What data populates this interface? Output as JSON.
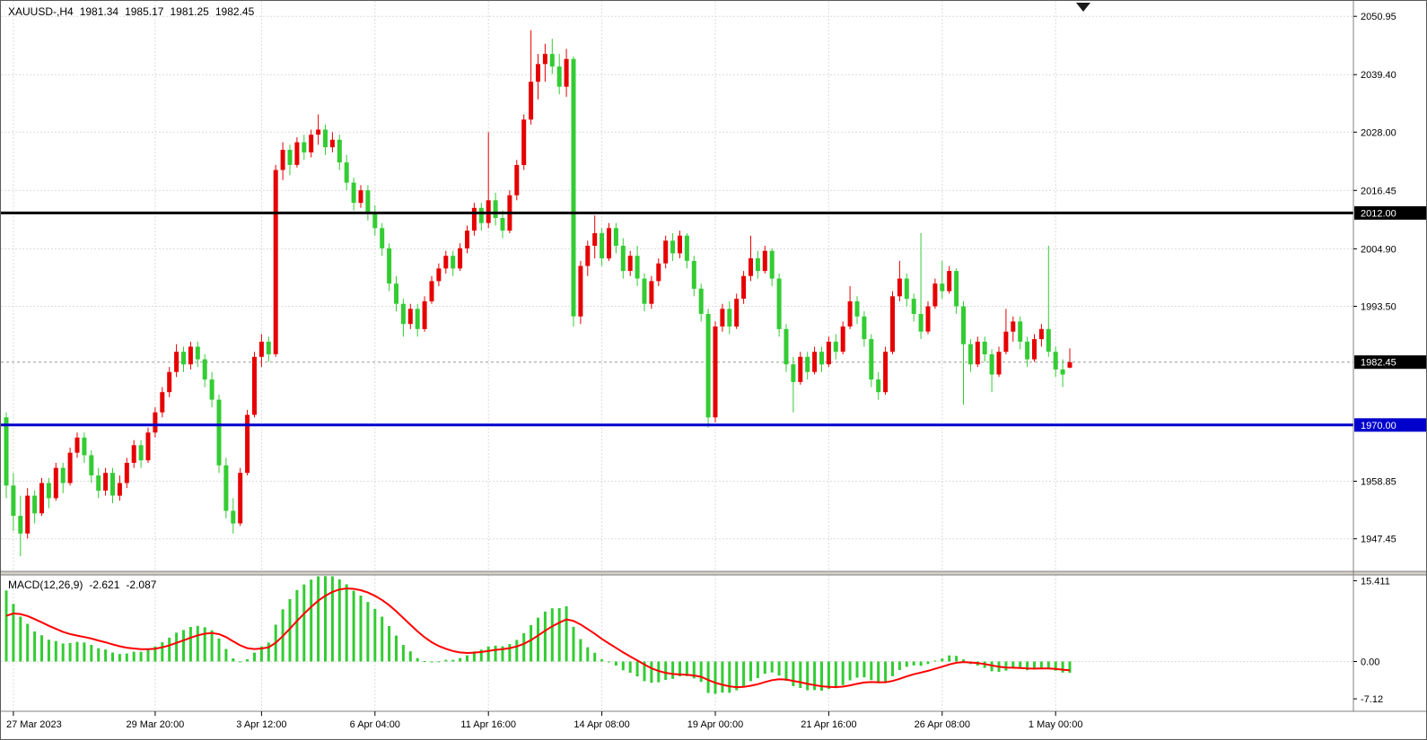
{
  "header": {
    "symbol_timeframe": "XAUUSD-,H4",
    "open": "1981.34",
    "high": "1985.17",
    "low": "1981.25",
    "close": "1982.45"
  },
  "indicator_header": {
    "label": "MACD(12,26,9)",
    "value": "-2.621",
    "signal": "-2.087"
  },
  "chart_data": {
    "type": "candlestick",
    "symbol": "XAUUSD-",
    "timeframe": "H4",
    "grid": true,
    "price_range": [
      1941,
      2054
    ],
    "current_price": 1982.45,
    "current_price_label": "1982.45",
    "colors": {
      "up": "#E60000",
      "down": "#33CC33",
      "background": "#FFFFFF",
      "text": "#000000",
      "bid_line": "#9a9a9a"
    },
    "price_ticks": [
      {
        "label": "2050.95",
        "value": 2050.95
      },
      {
        "label": "2039.40",
        "value": 2039.4
      },
      {
        "label": "2028.00",
        "value": 2028.0
      },
      {
        "label": "2016.45",
        "value": 2016.45
      },
      {
        "label": "2004.90",
        "value": 2004.9
      },
      {
        "label": "1993.50",
        "value": 1993.5
      },
      {
        "label": "1958.85",
        "value": 1958.85
      },
      {
        "label": "1947.45",
        "value": 1947.45
      }
    ],
    "levels": [
      {
        "label": "2012.00",
        "price": 2012.0,
        "color": "#000000"
      },
      {
        "label": "1970.00",
        "price": 1970.0,
        "color": "#0000CC"
      }
    ],
    "time_labels": [
      {
        "text": "27 Mar 2023",
        "index": 1
      },
      {
        "text": "29 Mar 20:00",
        "index": 21
      },
      {
        "text": "3 Apr 12:00",
        "index": 36
      },
      {
        "text": "6 Apr 04:00",
        "index": 52
      },
      {
        "text": "11 Apr 16:00",
        "index": 68
      },
      {
        "text": "14 Apr 08:00",
        "index": 84
      },
      {
        "text": "19 Apr 00:00",
        "index": 100
      },
      {
        "text": "21 Apr 16:00",
        "index": 116
      },
      {
        "text": "26 Apr 08:00",
        "index": 132
      },
      {
        "text": "1 May 00:00",
        "index": 148
      }
    ],
    "candles": [
      [
        1971.5,
        1972.5,
        1955.5,
        1958
      ],
      [
        1958,
        1960.5,
        1949,
        1952
      ],
      [
        1952,
        1956,
        1944,
        1948.5
      ],
      [
        1948.5,
        1957.5,
        1947.5,
        1956
      ],
      [
        1956,
        1957,
        1950.5,
        1952.5
      ],
      [
        1952.5,
        1959.5,
        1952,
        1958.5
      ],
      [
        1958.5,
        1959.5,
        1953.5,
        1955.5
      ],
      [
        1955.5,
        1962.5,
        1955,
        1961.5
      ],
      [
        1961.5,
        1962.5,
        1956.5,
        1958.5
      ],
      [
        1958.5,
        1965.5,
        1958,
        1964.5
      ],
      [
        1964.5,
        1968.5,
        1963.5,
        1967.5
      ],
      [
        1967.5,
        1968.5,
        1962.5,
        1964
      ],
      [
        1964,
        1965,
        1958.5,
        1960
      ],
      [
        1960,
        1961.5,
        1955.5,
        1957
      ],
      [
        1957,
        1961.5,
        1956,
        1960.5
      ],
      [
        1960.5,
        1961.5,
        1954.5,
        1956
      ],
      [
        1956,
        1960,
        1955,
        1958.5
      ],
      [
        1958.5,
        1963.5,
        1957.5,
        1962.5
      ],
      [
        1962.5,
        1967,
        1961.5,
        1966
      ],
      [
        1966,
        1967,
        1961.5,
        1963
      ],
      [
        1963,
        1969.5,
        1962.5,
        1968.5
      ],
      [
        1968.5,
        1973.5,
        1967.5,
        1972.5
      ],
      [
        1972.5,
        1977.5,
        1971.5,
        1976.5
      ],
      [
        1976.5,
        1981.5,
        1975.5,
        1980.5
      ],
      [
        1980.5,
        1986,
        1979.5,
        1984.5
      ],
      [
        1984.5,
        1985.5,
        1980.5,
        1982
      ],
      [
        1982,
        1986.5,
        1981,
        1985.5
      ],
      [
        1985.5,
        1986.5,
        1981.5,
        1983
      ],
      [
        1983,
        1984,
        1977.5,
        1979
      ],
      [
        1979,
        1980.5,
        1973.5,
        1975
      ],
      [
        1975,
        1976,
        1960.5,
        1962
      ],
      [
        1962,
        1963.5,
        1951.5,
        1953
      ],
      [
        1953,
        1955.5,
        1948.5,
        1950.5
      ],
      [
        1950.5,
        1961.5,
        1950,
        1960.5
      ],
      [
        1960.5,
        1973,
        1960,
        1972
      ],
      [
        1972,
        1984.5,
        1971.5,
        1983.5
      ],
      [
        1983.5,
        1988,
        1981.5,
        1986.5
      ],
      [
        1986.5,
        1987.5,
        1982.5,
        1984
      ],
      [
        1984,
        2021.5,
        1983.5,
        2020.5
      ],
      [
        2020.5,
        2026,
        2018.5,
        2024.5
      ],
      [
        2024.5,
        2025.5,
        2019.5,
        2021.5
      ],
      [
        2021.5,
        2027,
        2021,
        2026
      ],
      [
        2026,
        2027.5,
        2022.5,
        2024
      ],
      [
        2024,
        2028.5,
        2023,
        2027.5
      ],
      [
        2027.5,
        2031.5,
        2025.5,
        2028.5
      ],
      [
        2028.5,
        2029.5,
        2023.5,
        2025
      ],
      [
        2025,
        2028,
        2024,
        2026.5
      ],
      [
        2026.5,
        2027.5,
        2020.5,
        2022
      ],
      [
        2022,
        2023.5,
        2016.5,
        2018
      ],
      [
        2018,
        2019,
        2012.5,
        2014
      ],
      [
        2014,
        2017.5,
        2013,
        2016.5
      ],
      [
        2016.5,
        2017.5,
        2010.5,
        2012
      ],
      [
        2012,
        2013.5,
        2007.5,
        2009
      ],
      [
        2009,
        2010,
        2003.5,
        2005
      ],
      [
        2005,
        2006,
        1996.5,
        1998
      ],
      [
        1998,
        1999.5,
        1992.5,
        1994
      ],
      [
        1994,
        1995,
        1987.5,
        1990
      ],
      [
        1990,
        1994,
        1989,
        1993
      ],
      [
        1993,
        1994,
        1987.5,
        1989
      ],
      [
        1989,
        1995.5,
        1988.5,
        1994.5
      ],
      [
        1994.5,
        1999.5,
        1994,
        1998.5
      ],
      [
        1998.5,
        2002,
        1997.5,
        2001
      ],
      [
        2001,
        2004.5,
        2000,
        2003.5
      ],
      [
        2003.5,
        2004.5,
        1999.5,
        2001
      ],
      [
        2001,
        2006,
        2000.5,
        2005
      ],
      [
        2005,
        2009.5,
        2004,
        2008.5
      ],
      [
        2008.5,
        2014,
        2007.5,
        2013
      ],
      [
        2013,
        2014,
        2008.5,
        2010
      ],
      [
        2010,
        2028,
        2009,
        2014.5
      ],
      [
        2014.5,
        2016,
        2009.5,
        2011
      ],
      [
        2011,
        2012.5,
        2007,
        2008.5
      ],
      [
        2008.5,
        2016.5,
        2008,
        2015.5
      ],
      [
        2015.5,
        2022.5,
        2014.5,
        2021.5
      ],
      [
        2021.5,
        2031.5,
        2020.5,
        2030.5
      ],
      [
        2030.5,
        2048.2,
        2029.5,
        2038
      ],
      [
        2038,
        2043.5,
        2034.5,
        2041.5
      ],
      [
        2041.5,
        2045.5,
        2038,
        2043.5
      ],
      [
        2043.5,
        2046.5,
        2039.5,
        2041
      ],
      [
        2041,
        2043.5,
        2035.5,
        2037
      ],
      [
        2037,
        2044.5,
        2035,
        2042.5
      ],
      [
        2042.5,
        2043,
        1989.5,
        1991.5
      ],
      [
        1991.5,
        2002.5,
        1990,
        2001.5
      ],
      [
        2001.5,
        2006.5,
        1999.5,
        2005.5
      ],
      [
        2005.5,
        2011.5,
        2003,
        2008
      ],
      [
        2008,
        2009,
        2001.5,
        2003
      ],
      [
        2003,
        2010,
        2002.5,
        2009
      ],
      [
        2009,
        2010,
        2004,
        2005.5
      ],
      [
        2005.5,
        2007,
        1999,
        2000.5
      ],
      [
        2000.5,
        2004.5,
        1999.5,
        2003.5
      ],
      [
        2003.5,
        2005.5,
        1997.5,
        1999
      ],
      [
        1999,
        2000,
        1992.5,
        1994
      ],
      [
        1994,
        1999.5,
        1993,
        1998.5
      ],
      [
        1998.5,
        2003,
        1997.5,
        2002
      ],
      [
        2002,
        2007.5,
        2001,
        2006.5
      ],
      [
        2006.5,
        2008,
        2002.5,
        2004
      ],
      [
        2004,
        2008.5,
        2003,
        2007.5
      ],
      [
        2007.5,
        2008,
        2001,
        2002.5
      ],
      [
        2002.5,
        2003.5,
        1995.5,
        1997
      ],
      [
        1997,
        1998,
        1990.5,
        1992
      ],
      [
        1992,
        1993,
        1969.5,
        1971.5
      ],
      [
        1971.5,
        1990.5,
        1970.5,
        1989.5
      ],
      [
        1989.5,
        1994,
        1988.5,
        1993
      ],
      [
        1993,
        1994.5,
        1988,
        1989.5
      ],
      [
        1989.5,
        1996,
        1989,
        1995
      ],
      [
        1995,
        2000.5,
        1994,
        1999.5
      ],
      [
        1999.5,
        2007.5,
        1998.5,
        2003
      ],
      [
        2003,
        2004.5,
        1999,
        2000.5
      ],
      [
        2000.5,
        2005.5,
        2000,
        2004.5
      ],
      [
        2004.5,
        2005,
        1997.5,
        1999
      ],
      [
        1999,
        2000,
        1987.5,
        1989
      ],
      [
        1989,
        1990,
        1980.5,
        1982
      ],
      [
        1982,
        1983.5,
        1972.5,
        1978.5
      ],
      [
        1978.5,
        1984.5,
        1978,
        1983.5
      ],
      [
        1983.5,
        1984.5,
        1979,
        1980.5
      ],
      [
        1980.5,
        1985.5,
        1980,
        1984.5
      ],
      [
        1984.5,
        1985.5,
        1980.5,
        1982
      ],
      [
        1982,
        1987.5,
        1981.5,
        1986.5
      ],
      [
        1986.5,
        1988,
        1983,
        1984.5
      ],
      [
        1984.5,
        1990.5,
        1984,
        1989.5
      ],
      [
        1989.5,
        1997.5,
        1989,
        1994.5
      ],
      [
        1994.5,
        1995.5,
        1990,
        1991.5
      ],
      [
        1991.5,
        1992.5,
        1985.5,
        1987
      ],
      [
        1987,
        1988,
        1977.5,
        1979
      ],
      [
        1979,
        1980.5,
        1975,
        1976.5
      ],
      [
        1976.5,
        1985.5,
        1976,
        1984.5
      ],
      [
        1984.5,
        1996.5,
        1984,
        1995.5
      ],
      [
        1995.5,
        2002.5,
        1994.5,
        1999
      ],
      [
        1999,
        2000,
        1993.5,
        1995
      ],
      [
        1995,
        1996,
        1990.5,
        1992
      ],
      [
        1992,
        2008,
        1987,
        1988.5
      ],
      [
        1988.5,
        1994.5,
        1988,
        1993.5
      ],
      [
        1993.5,
        1999,
        1993,
        1998
      ],
      [
        1998,
        2002.5,
        1995,
        1996.5
      ],
      [
        1996.5,
        2001.5,
        1996,
        2000.5
      ],
      [
        2000.5,
        2001,
        1992,
        1993.5
      ],
      [
        1993.5,
        1994.5,
        1974,
        1986
      ],
      [
        1986,
        1987,
        1980.5,
        1982
      ],
      [
        1982,
        1987.5,
        1981.5,
        1986.5
      ],
      [
        1986.5,
        1987.5,
        1982.5,
        1984
      ],
      [
        1984,
        1985,
        1976.5,
        1980
      ],
      [
        1980,
        1985.5,
        1979.5,
        1984.5
      ],
      [
        1984.5,
        1993,
        1984,
        1988.5
      ],
      [
        1988.5,
        1991.5,
        1986.5,
        1990.5
      ],
      [
        1990.5,
        1991.5,
        1985,
        1986.5
      ],
      [
        1986.5,
        1987.5,
        1981.5,
        1983
      ],
      [
        1983,
        1988,
        1982.5,
        1987
      ],
      [
        1987,
        1990,
        1985.5,
        1989
      ],
      [
        1989,
        2005.5,
        1983.5,
        1984.5
      ],
      [
        1984.5,
        1985.5,
        1979.5,
        1981
      ],
      [
        1981,
        1983,
        1977.5,
        1980
      ],
      [
        1981.34,
        1985.17,
        1981.25,
        1982.45
      ]
    ],
    "indicator": {
      "type": "macd",
      "label": "MACD(12,26,9)",
      "params": [
        12,
        26,
        9
      ],
      "value": -2.621,
      "signal_value": -2.087,
      "range": [
        -9.5,
        16.5
      ],
      "ticks": [
        {
          "label": "15.411",
          "value": 15.411
        },
        {
          "label": "0.00",
          "value": 0
        },
        {
          "label": "-7.12",
          "value": -7.12
        }
      ],
      "seed": {
        "fast": 16,
        "slow": 0,
        "signal": 7.5
      },
      "histogram_color": "#33CC33",
      "signal_color": "#FF0000"
    }
  }
}
